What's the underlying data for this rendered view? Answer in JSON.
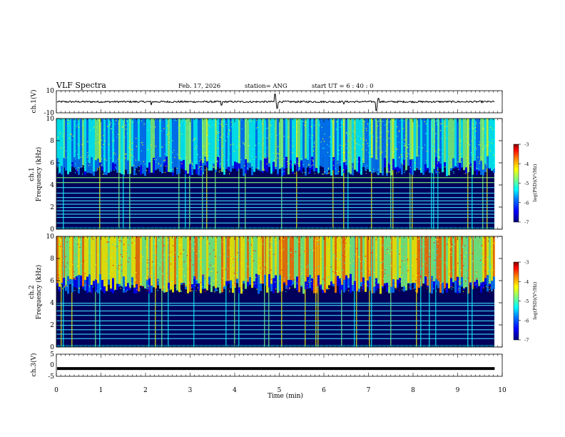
{
  "header": {
    "title": "VLF Spectra",
    "date": "Feb. 17, 2026",
    "station": "station= ANG",
    "start": "start  UT =   6  : 40 : 0"
  },
  "chart_data": [
    {
      "type": "line",
      "name": "ch1-waveform",
      "ylabel": "ch.1(V)",
      "ylim": [
        -10,
        10
      ],
      "y_ticks": [
        "10",
        "-10"
      ],
      "baseline": 0,
      "spikes": [
        {
          "t": 2.13,
          "amp": -3
        },
        {
          "t": 3.7,
          "amp": -3
        },
        {
          "t": 4.9,
          "amp": 7
        },
        {
          "t": 4.95,
          "amp": -6
        },
        {
          "t": 6.45,
          "amp": -2
        },
        {
          "t": 7.18,
          "amp": -8
        },
        {
          "t": 7.22,
          "amp": 3
        }
      ]
    },
    {
      "type": "heatmap",
      "name": "ch1-spectrogram",
      "ylabel_top": "ch.1",
      "ylabel": "Frequency  (kHz)",
      "ylim": [
        0,
        10
      ],
      "y_ticks": [
        "0",
        "2",
        "4",
        "6",
        "8",
        "10"
      ],
      "colorbar": {
        "ticks": [
          "-3",
          "-4",
          "-5",
          "-6",
          "-7"
        ],
        "label": "log(PSD)(V²/Hz)",
        "range": [
          -7,
          -3
        ]
      },
      "band_lines_khz": [
        4.7,
        4.25,
        3.8,
        3.3,
        2.9,
        2.6,
        2.3,
        2.0,
        1.7,
        1.4,
        1.1,
        0.6
      ]
    },
    {
      "type": "heatmap",
      "name": "ch2-spectrogram",
      "ylabel_top": "ch.2",
      "ylabel": "Frequency  (kHz)",
      "ylim": [
        0,
        10
      ],
      "y_ticks": [
        "0",
        "2",
        "4",
        "6",
        "8",
        "10"
      ],
      "colorbar": {
        "ticks": [
          "-3",
          "-4",
          "-5",
          "-6",
          "-7"
        ],
        "label": "log(PSD)(V²/Hz)",
        "range": [
          -7,
          -3
        ]
      },
      "band_lines_khz": [
        4.0,
        3.8,
        3.3,
        2.9,
        2.4,
        2.0,
        1.6,
        1.2,
        0.8
      ]
    },
    {
      "type": "line",
      "name": "ch3-waveform",
      "ylabel": "ch.3(V)",
      "ylim": [
        -5,
        5
      ],
      "y_ticks": [
        "5",
        "0",
        "-5"
      ],
      "constant_value": -1.5
    }
  ],
  "xaxis": {
    "label": "Time  (min)",
    "xlim": [
      0,
      10
    ],
    "ticks": [
      "0",
      "1",
      "2",
      "3",
      "4",
      "5",
      "6",
      "7",
      "8",
      "9",
      "10"
    ],
    "data_end": 9.83
  },
  "colors": {
    "scale": [
      "#00007f",
      "#0000ff",
      "#007fff",
      "#00ffff",
      "#7fff7f",
      "#ffff00",
      "#ff7f00",
      "#ff0000",
      "#7f0000"
    ]
  }
}
